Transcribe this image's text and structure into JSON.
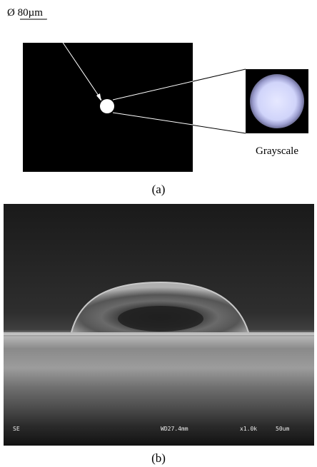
{
  "figure_a": {
    "diameter_label": "Ø 80µm",
    "zoom_label": "Grayscale",
    "caption": "(a)"
  },
  "figure_b": {
    "detector": "SE",
    "working_distance": "WD27.4mm",
    "magnification": "x1.0k",
    "scale_bar": "50um",
    "caption": "(b)"
  }
}
